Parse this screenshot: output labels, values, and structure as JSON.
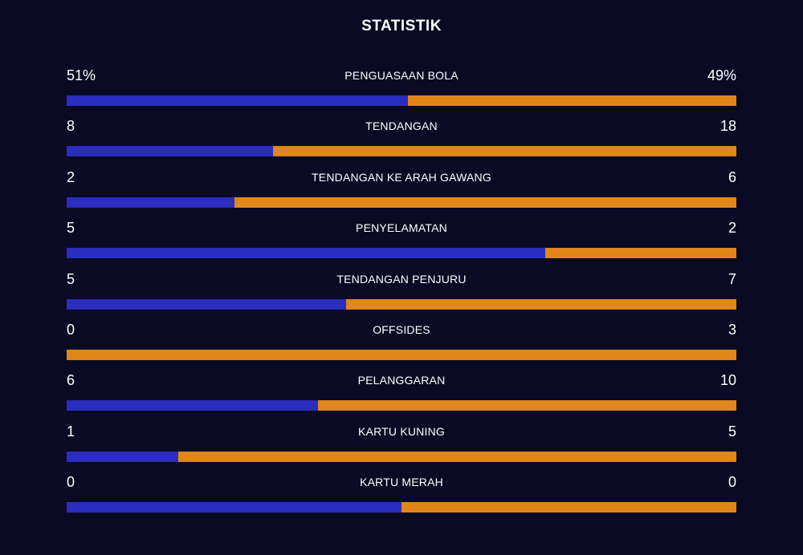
{
  "title": "STATISTIK",
  "colors": {
    "background": "#0a0a24",
    "home": "#2a2dbd",
    "away": "#e0861a",
    "text": "#ffffff"
  },
  "stats": [
    {
      "label": "PENGUASAAN BOLA",
      "left": "51%",
      "right": "49%",
      "home_share": 0.51
    },
    {
      "label": "TENDANGAN",
      "left": "8",
      "right": "18",
      "home_share": 0.3077
    },
    {
      "label": "TENDANGAN KE ARAH GAWANG",
      "left": "2",
      "right": "6",
      "home_share": 0.25
    },
    {
      "label": "PENYELAMATAN",
      "left": "5",
      "right": "2",
      "home_share": 0.7143
    },
    {
      "label": "TENDANGAN PENJURU",
      "left": "5",
      "right": "7",
      "home_share": 0.4167
    },
    {
      "label": "OFFSIDES",
      "left": "0",
      "right": "3",
      "home_share": 0.0
    },
    {
      "label": "PELANGGARAN",
      "left": "6",
      "right": "10",
      "home_share": 0.375
    },
    {
      "label": "KARTU KUNING",
      "left": "1",
      "right": "5",
      "home_share": 0.1667
    },
    {
      "label": "KARTU MERAH",
      "left": "0",
      "right": "0",
      "home_share": 0.5
    }
  ]
}
